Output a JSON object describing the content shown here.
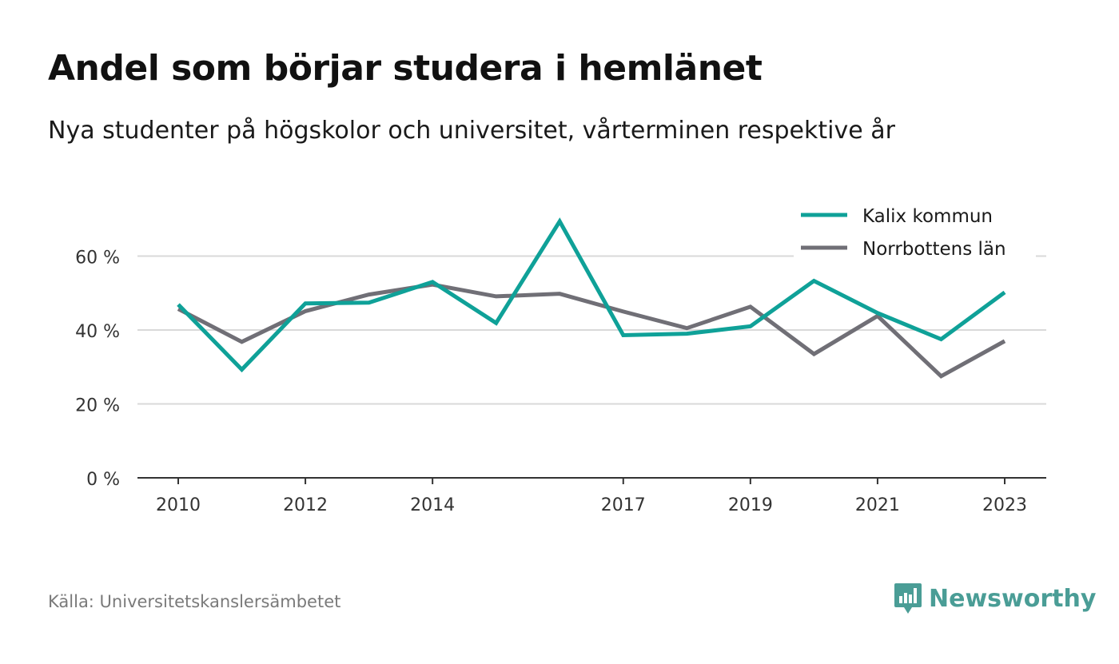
{
  "title": "Andel som börjar studera i hemlänet",
  "subtitle": "Nya studenter på högskolor och universitet, vårterminen respektive år",
  "source": "Källa: Universitetskanslersämbetet",
  "brand": "Newsworthy",
  "colors": {
    "kalix": "#0fa198",
    "norrbotten": "#706f76",
    "grid": "#d9d9d9",
    "axis": "#333333",
    "brand": "#4a9d96"
  },
  "chart_data": {
    "type": "line",
    "x": [
      2010,
      2011,
      2012,
      2013,
      2014,
      2015,
      2016,
      2017,
      2018,
      2019,
      2020,
      2021,
      2022,
      2023
    ],
    "x_tick_labels": [
      "2010",
      "2012",
      "2014",
      "2017",
      "2019",
      "2021",
      "2023"
    ],
    "y_ticks": [
      0,
      20,
      40,
      60
    ],
    "y_tick_labels": [
      "0 %",
      "20 %",
      "40 %",
      "60 %"
    ],
    "ylim": [
      0,
      70
    ],
    "grid": true,
    "legend_position": "top-right",
    "series": [
      {
        "name": "Kalix kommun",
        "values": [
          46.9,
          29.3,
          47.2,
          47.4,
          53.0,
          41.9,
          69.4,
          38.6,
          39.0,
          41.0,
          53.3,
          44.6,
          37.5,
          50.2
        ]
      },
      {
        "name": "Norrbottens län",
        "values": [
          45.7,
          36.8,
          45.1,
          49.6,
          52.3,
          49.1,
          49.8,
          45.0,
          40.5,
          46.3,
          33.5,
          43.8,
          27.5,
          37.0
        ]
      }
    ]
  }
}
